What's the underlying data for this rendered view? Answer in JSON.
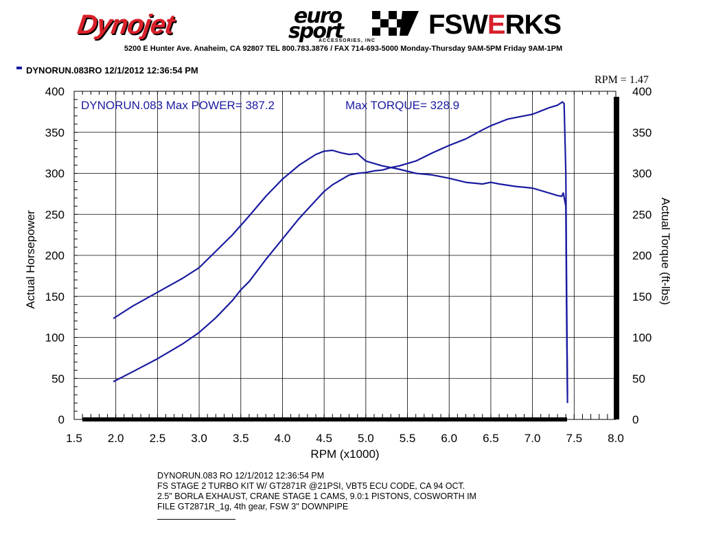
{
  "header": {
    "logo_dynojet": "Dynojet",
    "logo_eurosport_1": "euro",
    "logo_eurosport_2": "sport",
    "logo_eurosport_3": "ACCESSORIES, INC",
    "logo_fswerks_1": "FSW",
    "logo_fswerks_2": "E",
    "logo_fswerks_3": "RKS",
    "address": "5200 E Hunter Ave. Anaheim, CA 92807 TEL 800.783.3876 / FAX 714-693-5000   Monday-Thursday 9AM-5PM  Friday 9AM-1PM",
    "run_line": "DYNORUN.083RO  12/1/2012 12:36:54 PM",
    "rpm_readout": "RPM = 1.47"
  },
  "notes": {
    "line1": "DYNORUN.083        RO   12/1/2012 12:36:54 PM",
    "line2": "FS STAGE 2 TURBO KIT W/ GT2871R @21PSI, VBT5 ECU CODE, CA 94 OCT.",
    "line3": "2.5\" BORLA EXHAUST, CRANE STAGE 1 CAMS, 9.0:1 PISTONS, COSWORTH IM",
    "line4": "FILE GT2871R_1g, 4th gear, FSW 3\" DOWNPIPE"
  },
  "colors": {
    "curve": "#1a1aa0",
    "annotation": "#1a1aa0",
    "axis": "#000000",
    "grid": "#000000",
    "logo_red": "#d8202a"
  },
  "chart_data": {
    "type": "line",
    "annotation_left": "DYNORUN.083  Max POWER= 387.2",
    "annotation_right": "Max TORQUE= 328.9",
    "xlabel": "RPM (x1000)",
    "ylabel": "Actual Horsepower",
    "y2label": "Actual Torque (ft-lbs)",
    "xlim": [
      1.5,
      8.0
    ],
    "ylim": [
      0,
      400
    ],
    "y2lim": [
      0,
      400
    ],
    "x_ticks": [
      "1.5",
      "2.0",
      "2.5",
      "3.0",
      "3.5",
      "4.0",
      "4.5",
      "5.0",
      "5.5",
      "6.0",
      "6.5",
      "7.0",
      "7.5",
      "8.0"
    ],
    "y_ticks": [
      "0",
      "50",
      "100",
      "150",
      "200",
      "250",
      "300",
      "350",
      "400"
    ],
    "grid": true,
    "series": [
      {
        "label": "power",
        "x": [
          1.97,
          2.2,
          2.5,
          2.8,
          3.0,
          3.2,
          3.4,
          3.5,
          3.6,
          3.8,
          4.0,
          4.2,
          4.4,
          4.5,
          4.6,
          4.7,
          4.8,
          4.9,
          5.0,
          5.1,
          5.2,
          5.3,
          5.4,
          5.6,
          5.8,
          6.0,
          6.2,
          6.4,
          6.5,
          6.6,
          6.7,
          6.8,
          6.9,
          7.0,
          7.1,
          7.2,
          7.3,
          7.36,
          7.38,
          7.4,
          7.41,
          7.42
        ],
        "y": [
          46,
          58,
          74,
          92,
          106,
          124,
          145,
          158,
          168,
          195,
          220,
          245,
          267,
          278,
          286,
          292,
          298,
          300,
          301,
          303,
          304,
          307,
          309,
          315,
          325,
          334,
          342,
          353,
          358,
          362,
          366,
          368,
          370,
          372,
          376,
          380,
          383,
          387,
          385,
          300,
          150,
          30
        ]
      },
      {
        "label": "torque",
        "x": [
          1.97,
          2.2,
          2.5,
          2.8,
          3.0,
          3.2,
          3.4,
          3.6,
          3.8,
          4.0,
          4.2,
          4.4,
          4.5,
          4.6,
          4.7,
          4.8,
          4.9,
          5.0,
          5.1,
          5.2,
          5.3,
          5.4,
          5.6,
          5.8,
          6.0,
          6.2,
          6.4,
          6.5,
          6.6,
          6.8,
          7.0,
          7.2,
          7.3,
          7.35,
          7.37,
          7.4,
          7.41,
          7.42
        ],
        "y": [
          123,
          138,
          155,
          172,
          185,
          205,
          225,
          248,
          272,
          293,
          310,
          323,
          327,
          328,
          325,
          323,
          324,
          315,
          312,
          309,
          307,
          305,
          300,
          298,
          294,
          289,
          287,
          289,
          287,
          284,
          282,
          276,
          273,
          272,
          276,
          260,
          120,
          20
        ]
      }
    ]
  }
}
